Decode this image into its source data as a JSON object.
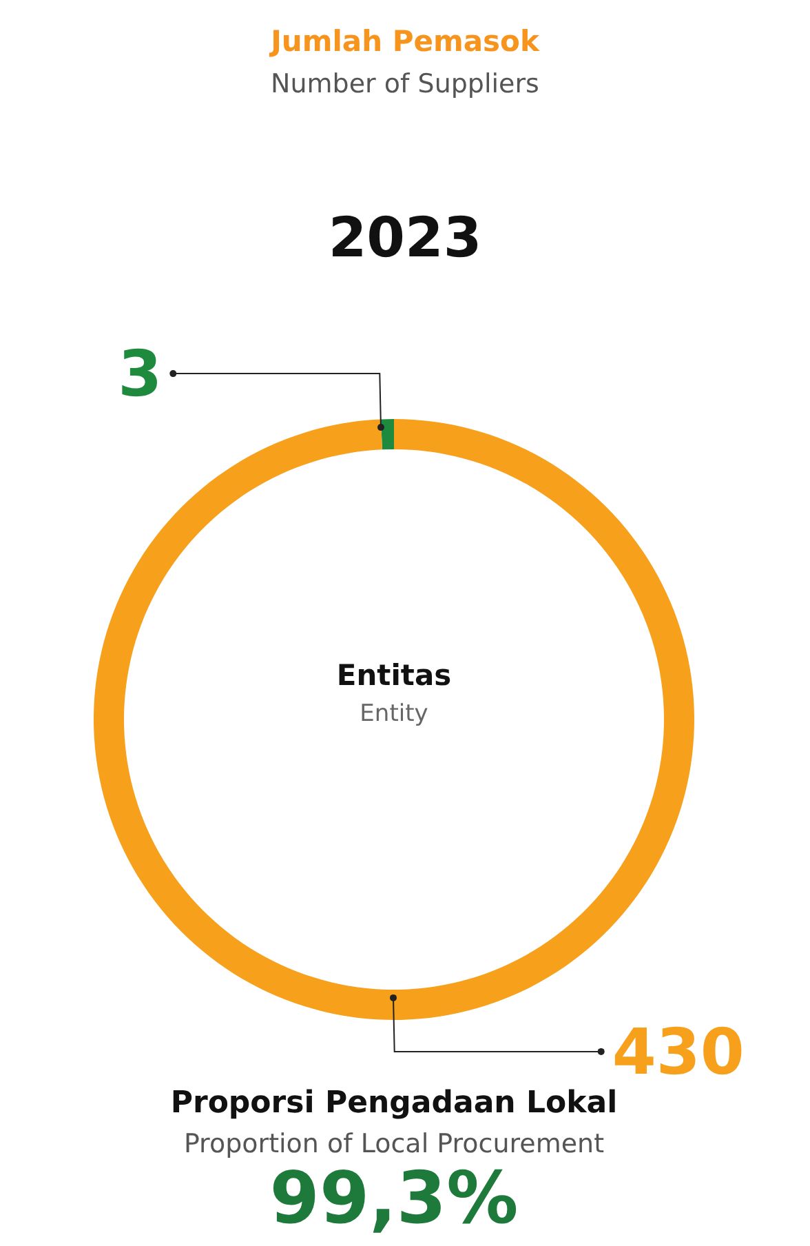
{
  "chart_data": {
    "type": "donut",
    "title": "Jumlah Pemasok",
    "subtitle": "Number of Suppliers",
    "categories": [
      null,
      null
    ],
    "values": [
      3,
      430
    ],
    "colors": [
      "#1e8a3e",
      "#f7a01c"
    ],
    "data_labels": true,
    "annotations": [
      "2023",
      "Entitas",
      "Entity",
      "Proporsi Pengadaan Lokal",
      "Proportion of Local Procurement",
      "99,3%"
    ]
  }
}
